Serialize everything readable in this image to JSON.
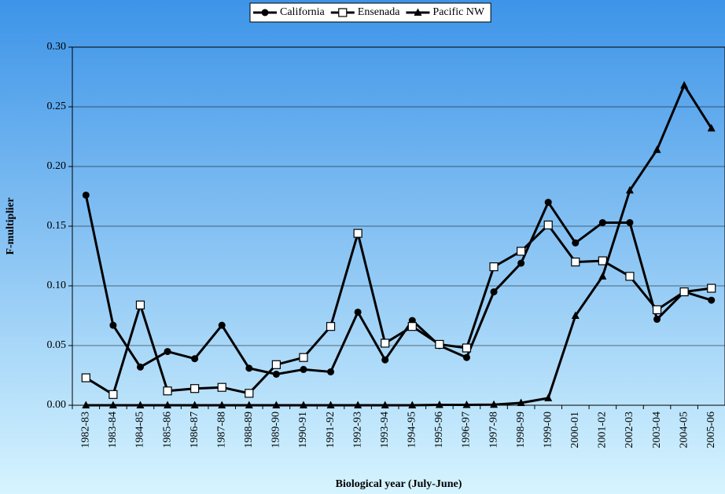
{
  "chart_data": {
    "type": "line",
    "x_label": "Biological year (July-June)",
    "y_label": "F-multiplier",
    "categories": [
      "1982-83",
      "1983-84",
      "1984-85",
      "1985-86",
      "1986-87",
      "1987-88",
      "1988-89",
      "1989-90",
      "1990-91",
      "1991-92",
      "1992-93",
      "1993-94",
      "1994-95",
      "1995-96",
      "1996-97",
      "1997-98",
      "1998-99",
      "1999-00",
      "2000-01",
      "2001-02",
      "2002-03",
      "2003-04",
      "2004-05",
      "2005-06"
    ],
    "series": [
      {
        "name": "California",
        "color": "#000000",
        "marker": "circle",
        "values": [
          0.176,
          0.067,
          0.032,
          0.045,
          0.039,
          0.067,
          0.031,
          0.026,
          0.03,
          0.028,
          0.078,
          0.038,
          0.071,
          0.05,
          0.04,
          0.095,
          0.119,
          0.17,
          0.136,
          0.153,
          0.153,
          0.072,
          0.095,
          0.088
        ]
      },
      {
        "name": "Ensenada",
        "color": "#000000",
        "marker": "square",
        "values": [
          0.023,
          0.009,
          0.084,
          0.012,
          0.014,
          0.015,
          0.01,
          0.034,
          0.04,
          0.066,
          0.144,
          0.052,
          0.066,
          0.051,
          0.048,
          0.116,
          0.129,
          0.151,
          0.12,
          0.121,
          0.108,
          0.08,
          0.095,
          0.098
        ]
      },
      {
        "name": "Pacific NW",
        "color": "#000000",
        "marker": "triangle",
        "values": [
          0,
          0,
          0,
          0,
          0,
          0,
          0,
          0,
          0,
          0,
          0,
          0,
          0,
          0.0003,
          0.0003,
          0.0005,
          0.002,
          0.006,
          0.075,
          0.108,
          0.18,
          0.214,
          0.268,
          0.232
        ]
      }
    ],
    "ylim": [
      0,
      0.3
    ],
    "yticks": [
      {
        "value": 0,
        "label": "0.00"
      },
      0.05,
      {
        "value": 0.1,
        "label": "0.10"
      },
      0.15,
      {
        "value": 0.2,
        "label": "0.20"
      },
      0.25,
      {
        "value": 0.3,
        "label": "0.30"
      }
    ],
    "grid": true,
    "legend": "top"
  }
}
